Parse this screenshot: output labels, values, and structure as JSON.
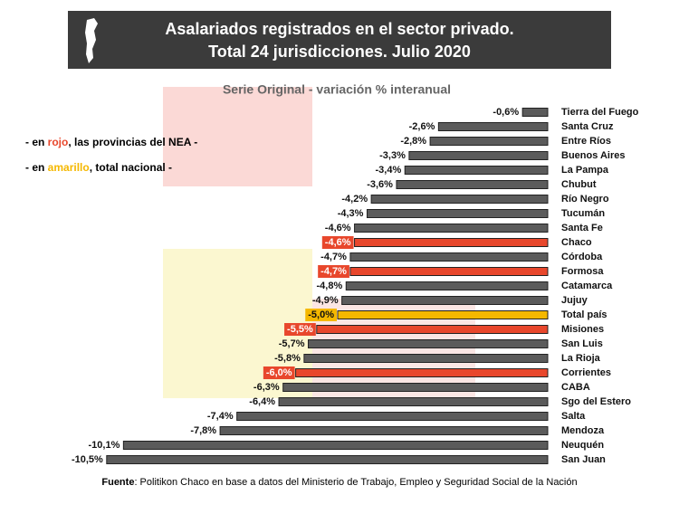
{
  "chart_data": {
    "type": "bar",
    "title_lines": [
      "Asalariados registrados en el sector privado.",
      "Total 24 jurisdicciones. Julio 2020"
    ],
    "subtitle": "Serie Original - variación % interanual",
    "notes": [
      [
        "- en ",
        "rojo",
        ", las provincias del NEA -"
      ],
      [
        "- en ",
        "amarillo",
        ", total nacional -"
      ]
    ],
    "note_colors": [
      "#e8472c",
      "#f5b800"
    ],
    "source": [
      "Fuente",
      ": Politikon Chaco en base a datos del Ministerio de Trabajo, Empleo y Seguridad Social de la Nación"
    ],
    "categories": [
      "Tierra del Fuego",
      "Santa Cruz",
      "Entre Ríos",
      "Buenos Aires",
      "La Pampa",
      "Chubut",
      "Río Negro",
      "Tucumán",
      "Santa Fe",
      "Chaco",
      "Córdoba",
      "Formosa",
      "Catamarca",
      "Jujuy",
      "Total país",
      "Misiones",
      "San Luis",
      "La Rioja",
      "Corrientes",
      "CABA",
      "Sgo del Estero",
      "Salta",
      "Mendoza",
      "Neuquén",
      "San Juan"
    ],
    "values": [
      -0.6,
      -2.6,
      -2.8,
      -3.3,
      -3.4,
      -3.6,
      -4.2,
      -4.3,
      -4.6,
      -4.6,
      -4.7,
      -4.7,
      -4.8,
      -4.9,
      -5.0,
      -5.5,
      -5.7,
      -5.8,
      -6.0,
      -6.3,
      -6.4,
      -7.4,
      -7.8,
      -10.1,
      -10.5
    ],
    "value_labels": [
      "-0,6%",
      "-2,6%",
      "-2,8%",
      "-3,3%",
      "-3,4%",
      "-3,6%",
      "-4,2%",
      "-4,3%",
      "-4,6%",
      "-4,6%",
      "-4,7%",
      "-4,7%",
      "-4,8%",
      "-4,9%",
      "-5,0%",
      "-5,5%",
      "-5,7%",
      "-5,8%",
      "-6,0%",
      "-6,3%",
      "-6,4%",
      "-7,4%",
      "-7,8%",
      "-10,1%",
      "-10,5%"
    ],
    "color": "#5b5b5b",
    "colors": [
      "#5b5b5b",
      "#5b5b5b",
      "#5b5b5b",
      "#5b5b5b",
      "#5b5b5b",
      "#5b5b5b",
      "#5b5b5b",
      "#5b5b5b",
      "#5b5b5b",
      "#e8472c",
      "#5b5b5b",
      "#e8472c",
      "#5b5b5b",
      "#5b5b5b",
      "#f5b800",
      "#e8472c",
      "#5b5b5b",
      "#5b5b5b",
      "#e8472c",
      "#5b5b5b",
      "#5b5b5b",
      "#5b5b5b",
      "#5b5b5b",
      "#5b5b5b",
      "#5b5b5b"
    ]
  }
}
